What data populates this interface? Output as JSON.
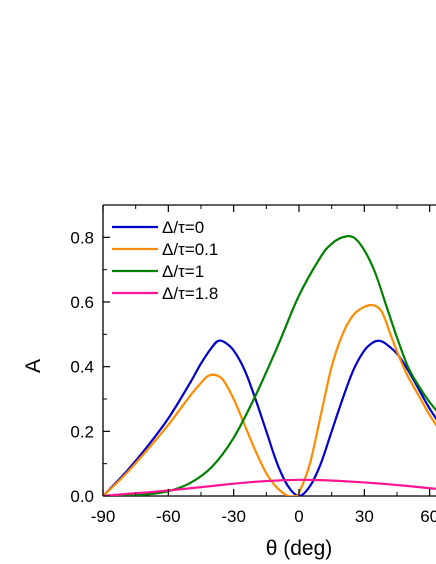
{
  "chart_data": {
    "type": "line",
    "xlabel": "θ (deg)",
    "ylabel": "A",
    "xlim": [
      -90,
      65
    ],
    "ylim": [
      0,
      0.9
    ],
    "x_ticks": [
      -90,
      -60,
      -30,
      0,
      30,
      60
    ],
    "x_tick_labels": [
      "-90",
      "-60",
      "-30",
      "0",
      "30",
      "60"
    ],
    "y_ticks": [
      0.0,
      0.2,
      0.4,
      0.6,
      0.8
    ],
    "y_tick_labels": [
      "0.0",
      "0.2",
      "0.4",
      "0.6",
      "0.8"
    ],
    "legend_position": "top-left",
    "series": [
      {
        "name": "Δ/τ=0",
        "color": "#0000cc",
        "x": [
          -90,
          -80,
          -70,
          -60,
          -50,
          -45,
          -40,
          -37,
          -34,
          -30,
          -25,
          -20,
          -15,
          -10,
          -5,
          0,
          5,
          10,
          15,
          20,
          25,
          30,
          34,
          37,
          40,
          45,
          50,
          55,
          60,
          65
        ],
        "y": [
          0.0,
          0.07,
          0.15,
          0.24,
          0.35,
          0.41,
          0.46,
          0.48,
          0.475,
          0.45,
          0.39,
          0.3,
          0.2,
          0.1,
          0.03,
          0.0,
          0.03,
          0.1,
          0.2,
          0.3,
          0.39,
          0.45,
          0.475,
          0.48,
          0.47,
          0.44,
          0.39,
          0.33,
          0.27,
          0.22
        ]
      },
      {
        "name": "Δ/τ=0.1",
        "color": "#ff8c00",
        "x": [
          -90,
          -80,
          -70,
          -60,
          -50,
          -45,
          -42,
          -39,
          -35,
          -30,
          -25,
          -20,
          -15,
          -10,
          -5,
          -2,
          0,
          5,
          10,
          15,
          20,
          25,
          30,
          34,
          38,
          42,
          46,
          50,
          55,
          60,
          65
        ],
        "y": [
          0.0,
          0.065,
          0.14,
          0.22,
          0.31,
          0.35,
          0.37,
          0.375,
          0.36,
          0.3,
          0.22,
          0.14,
          0.07,
          0.025,
          0.0,
          0.0,
          0.01,
          0.1,
          0.25,
          0.4,
          0.5,
          0.56,
          0.585,
          0.59,
          0.57,
          0.5,
          0.43,
          0.37,
          0.31,
          0.25,
          0.2
        ]
      },
      {
        "name": "Δ/τ=1",
        "color": "#008000",
        "x": [
          -90,
          -80,
          -70,
          -60,
          -50,
          -40,
          -30,
          -20,
          -10,
          0,
          10,
          15,
          20,
          25,
          30,
          35,
          40,
          45,
          50,
          55,
          60,
          65
        ],
        "y": [
          0.0,
          0.0,
          0.005,
          0.015,
          0.04,
          0.09,
          0.18,
          0.31,
          0.46,
          0.62,
          0.74,
          0.78,
          0.8,
          0.8,
          0.76,
          0.69,
          0.59,
          0.49,
          0.4,
          0.34,
          0.29,
          0.25
        ]
      },
      {
        "name": "Δ/τ=1.8",
        "color": "#ff1493",
        "x": [
          -90,
          -80,
          -70,
          -60,
          -50,
          -40,
          -30,
          -20,
          -10,
          0,
          10,
          20,
          30,
          40,
          50,
          60,
          65
        ],
        "y": [
          0.0,
          0.006,
          0.011,
          0.017,
          0.024,
          0.031,
          0.038,
          0.044,
          0.048,
          0.05,
          0.049,
          0.046,
          0.042,
          0.037,
          0.031,
          0.024,
          0.021
        ]
      }
    ]
  }
}
